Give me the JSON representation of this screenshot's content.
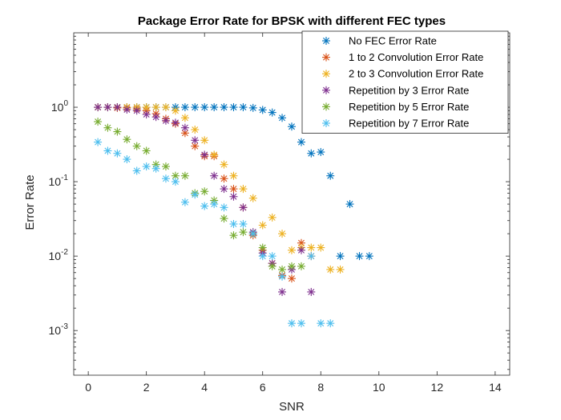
{
  "chart_data": {
    "type": "scatter",
    "title": "Package Error Rate for BPSK with different FEC types",
    "xlabel": "SNR",
    "ylabel": "Error Rate",
    "xlim": [
      -0.5,
      14.5
    ],
    "ylim_log10": [
      -3.6,
      1.0
    ],
    "yscale": "log",
    "grid": false,
    "legend_position": "top-right",
    "x_ticks": [
      0,
      2,
      4,
      6,
      8,
      10,
      12,
      14
    ],
    "y_ticks": [
      {
        "value": 0.001,
        "base": "10",
        "exp": "-3"
      },
      {
        "value": 0.01,
        "base": "10",
        "exp": "-2"
      },
      {
        "value": 0.1,
        "base": "10",
        "exp": "-1"
      },
      {
        "value": 1,
        "base": "10",
        "exp": "0"
      }
    ],
    "marker": "asterisk",
    "series": [
      {
        "name": "No FEC Error Rate",
        "color": "#0072BD",
        "x": [
          0.33,
          0.67,
          1.0,
          1.33,
          1.67,
          2.0,
          2.33,
          2.67,
          3.0,
          3.33,
          3.67,
          4.0,
          4.33,
          4.67,
          5.0,
          5.33,
          5.67,
          6.0,
          6.33,
          6.67,
          7.0,
          7.33,
          7.67,
          8.0,
          8.33,
          8.67,
          9.0,
          9.33,
          9.67
        ],
        "y": [
          1.0,
          1.0,
          1.0,
          1.0,
          1.0,
          1.0,
          1.0,
          1.0,
          1.0,
          1.0,
          1.0,
          1.0,
          1.0,
          1.0,
          1.0,
          1.0,
          0.98,
          0.92,
          0.85,
          0.72,
          0.55,
          0.34,
          0.24,
          0.25,
          0.12,
          0.01,
          0.05,
          0.01,
          0.01
        ]
      },
      {
        "name": "1 to 2 Convolution Error Rate",
        "color": "#D95319",
        "x": [
          0.33,
          0.67,
          1.0,
          1.33,
          1.67,
          2.0,
          2.33,
          2.67,
          3.0,
          3.33,
          3.67,
          4.0,
          4.33,
          4.67,
          5.0,
          5.33,
          5.67,
          6.0,
          6.33,
          6.67,
          7.0,
          7.33,
          7.67
        ],
        "y": [
          1.0,
          1.0,
          0.98,
          0.98,
          0.95,
          0.9,
          0.82,
          0.7,
          0.6,
          0.45,
          0.3,
          0.22,
          0.22,
          0.11,
          0.08,
          0.045,
          0.019,
          0.012,
          0.008,
          0.0055,
          0.005,
          0.015,
          0.01
        ]
      },
      {
        "name": "2 to 3 Convolution Error Rate",
        "color": "#EDB120",
        "x": [
          0.33,
          0.67,
          1.0,
          1.33,
          1.67,
          2.0,
          2.33,
          2.67,
          3.0,
          3.33,
          3.67,
          4.0,
          4.33,
          4.67,
          5.0,
          5.33,
          5.67,
          6.0,
          6.33,
          6.67,
          7.0,
          7.33,
          7.67,
          8.0,
          8.33,
          8.67
        ],
        "y": [
          1.0,
          1.0,
          1.0,
          1.0,
          1.0,
          1.0,
          1.0,
          1.0,
          0.9,
          0.72,
          0.5,
          0.36,
          0.23,
          0.17,
          0.12,
          0.08,
          0.06,
          0.026,
          0.033,
          0.02,
          0.012,
          0.013,
          0.013,
          0.013,
          0.0066,
          0.0066
        ]
      },
      {
        "name": "Repetition by 3 Error Rate",
        "color": "#7E2F8E",
        "x": [
          0.33,
          0.67,
          1.0,
          1.33,
          1.67,
          2.0,
          2.33,
          2.67,
          3.0,
          3.33,
          3.67,
          4.0,
          4.33,
          4.67,
          5.0,
          5.33,
          5.67,
          6.0,
          6.33,
          6.67,
          7.0,
          7.33,
          7.67
        ],
        "y": [
          1.0,
          1.0,
          1.0,
          0.93,
          0.9,
          0.8,
          0.74,
          0.66,
          0.62,
          0.53,
          0.36,
          0.23,
          0.12,
          0.08,
          0.063,
          0.045,
          0.021,
          0.011,
          0.008,
          0.0033,
          0.0066,
          0.012,
          0.0033
        ]
      },
      {
        "name": "Repetition by 5 Error Rate",
        "color": "#77AC30",
        "x": [
          0.33,
          0.67,
          1.0,
          1.33,
          1.67,
          2.0,
          2.33,
          2.67,
          3.0,
          3.33,
          3.67,
          4.0,
          4.33,
          4.67,
          5.0,
          5.33,
          5.67,
          6.0,
          6.33,
          6.67,
          7.0,
          7.33
        ],
        "y": [
          0.64,
          0.53,
          0.47,
          0.37,
          0.3,
          0.26,
          0.17,
          0.16,
          0.12,
          0.12,
          0.07,
          0.074,
          0.056,
          0.032,
          0.019,
          0.021,
          0.02,
          0.013,
          0.0073,
          0.0066,
          0.0073,
          0.0073
        ]
      },
      {
        "name": "Repetition by 7 Error Rate",
        "color": "#4DBEEE",
        "x": [
          0.33,
          0.67,
          1.0,
          1.33,
          1.67,
          2.0,
          2.33,
          2.67,
          3.0,
          3.33,
          3.67,
          4.0,
          4.33,
          4.67,
          5.0,
          5.33,
          5.67,
          6.0,
          6.33,
          6.67,
          7.0,
          7.33,
          7.67,
          8.0,
          8.33
        ],
        "y": [
          0.34,
          0.26,
          0.24,
          0.2,
          0.14,
          0.16,
          0.15,
          0.11,
          0.1,
          0.053,
          0.067,
          0.047,
          0.05,
          0.045,
          0.027,
          0.027,
          0.02,
          0.01,
          0.01,
          0.0053,
          0.00125,
          0.00125,
          0.01,
          0.00125,
          0.00125
        ]
      }
    ]
  }
}
